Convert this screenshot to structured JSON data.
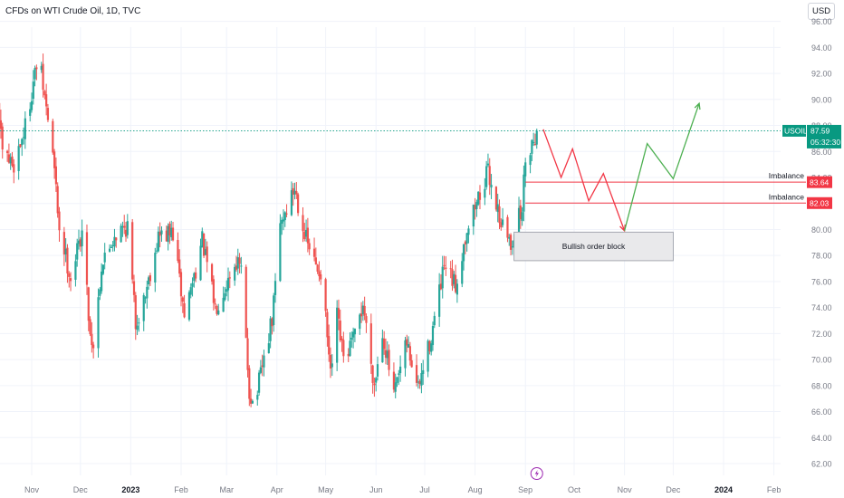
{
  "header": {
    "title": "CFDs on WTI Crude Oil, 1D, TVC",
    "currency_button": "USD"
  },
  "price_tag": {
    "symbol": "USOIL",
    "last_price": "87.59",
    "countdown": "05:32:30"
  },
  "colors": {
    "up": "#26a69a",
    "down": "#ef5350",
    "grid": "#f0f3fa",
    "axis_text": "#787b86",
    "projection_down": "#f23645",
    "projection_up": "#4caf50",
    "order_block_fill": "#e9e9eb",
    "order_block_stroke": "#9598a1",
    "label_red": "#f23645",
    "price_tag": "#089981"
  },
  "chart_data": {
    "type": "candlestick",
    "title": "CFDs on WTI Crude Oil, 1D, TVC",
    "ylim": [
      60.8,
      96.5
    ],
    "y_ticks": [
      62,
      64,
      66,
      68,
      70,
      72,
      74,
      76,
      78,
      80,
      82,
      84,
      86,
      88,
      90,
      92,
      94,
      96
    ],
    "x_ticks": [
      {
        "date": "2022-11-01",
        "label": "Nov",
        "bold": false
      },
      {
        "date": "2022-12-01",
        "label": "Dec",
        "bold": false
      },
      {
        "date": "2023-01-01",
        "label": "2023",
        "bold": true
      },
      {
        "date": "2023-02-01",
        "label": "Feb",
        "bold": false
      },
      {
        "date": "2023-03-01",
        "label": "Mar",
        "bold": false
      },
      {
        "date": "2023-04-01",
        "label": "Apr",
        "bold": false
      },
      {
        "date": "2023-05-01",
        "label": "May",
        "bold": false
      },
      {
        "date": "2023-06-01",
        "label": "Jun",
        "bold": false
      },
      {
        "date": "2023-07-01",
        "label": "Jul",
        "bold": false
      },
      {
        "date": "2023-08-01",
        "label": "Aug",
        "bold": false
      },
      {
        "date": "2023-09-01",
        "label": "Sep",
        "bold": false
      },
      {
        "date": "2023-10-01",
        "label": "Oct",
        "bold": false
      },
      {
        "date": "2023-11-01",
        "label": "Nov",
        "bold": false
      },
      {
        "date": "2023-12-01",
        "label": "Dec",
        "bold": false
      },
      {
        "date": "2024-01-01",
        "label": "2024",
        "bold": true
      },
      {
        "date": "2024-02-01",
        "label": "Feb",
        "bold": false
      }
    ],
    "price_path": [
      [
        "2022-10-05",
        88.5
      ],
      [
        "2022-10-10",
        91.2
      ],
      [
        "2022-10-14",
        85.6
      ],
      [
        "2022-10-21",
        85.0
      ],
      [
        "2022-10-28",
        87.9
      ],
      [
        "2022-11-04",
        92.6
      ],
      [
        "2022-11-07",
        91.8
      ],
      [
        "2022-11-14",
        85.9
      ],
      [
        "2022-11-18",
        80.1
      ],
      [
        "2022-11-25",
        76.3
      ],
      [
        "2022-12-02",
        79.9
      ],
      [
        "2022-12-07",
        72.0
      ],
      [
        "2022-12-09",
        71.1
      ],
      [
        "2022-12-14",
        77.2
      ],
      [
        "2022-12-22",
        79.6
      ],
      [
        "2022-12-30",
        80.3
      ],
      [
        "2023-01-04",
        72.8
      ],
      [
        "2023-01-09",
        74.6
      ],
      [
        "2023-01-18",
        79.5
      ],
      [
        "2023-01-27",
        79.7
      ],
      [
        "2023-02-03",
        73.4
      ],
      [
        "2023-02-14",
        79.1
      ],
      [
        "2023-02-22",
        74.0
      ],
      [
        "2023-03-07",
        77.6
      ],
      [
        "2023-03-10",
        76.7
      ],
      [
        "2023-03-15",
        67.6
      ],
      [
        "2023-03-17",
        66.7
      ],
      [
        "2023-03-20",
        67.6
      ],
      [
        "2023-03-29",
        73.0
      ],
      [
        "2023-03-31",
        75.7
      ],
      [
        "2023-04-03",
        80.4
      ],
      [
        "2023-04-12",
        83.2
      ],
      [
        "2023-04-19",
        79.2
      ],
      [
        "2023-04-25",
        77.1
      ],
      [
        "2023-04-28",
        76.8
      ],
      [
        "2023-05-02",
        71.7
      ],
      [
        "2023-05-04",
        68.6
      ],
      [
        "2023-05-08",
        73.2
      ],
      [
        "2023-05-12",
        70.0
      ],
      [
        "2023-05-19",
        71.7
      ],
      [
        "2023-05-24",
        74.3
      ],
      [
        "2023-05-31",
        68.1
      ],
      [
        "2023-06-05",
        72.2
      ],
      [
        "2023-06-12",
        67.1
      ],
      [
        "2023-06-20",
        71.2
      ],
      [
        "2023-06-27",
        67.7
      ],
      [
        "2023-07-05",
        71.8
      ],
      [
        "2023-07-13",
        77.0
      ],
      [
        "2023-07-20",
        75.6
      ],
      [
        "2023-07-27",
        80.1
      ],
      [
        "2023-08-04",
        82.8
      ],
      [
        "2023-08-09",
        84.4
      ],
      [
        "2023-08-17",
        80.6
      ],
      [
        "2023-08-23",
        78.8
      ],
      [
        "2023-08-25",
        79.8
      ],
      [
        "2023-08-30",
        81.6
      ],
      [
        "2023-09-01",
        85.6
      ],
      [
        "2023-09-05",
        86.7
      ],
      [
        "2023-09-08",
        87.6
      ]
    ],
    "last_price": 87.59,
    "price_line": 87.59,
    "annotations": [
      {
        "kind": "line",
        "label": "Imbalance",
        "price": 83.64,
        "price_label": "83.64",
        "start": "2023-09-01"
      },
      {
        "kind": "line",
        "label": "Imbalance",
        "price": 82.03,
        "price_label": "82.03",
        "start": "2023-09-01"
      },
      {
        "kind": "box",
        "label": "Bullish order block",
        "start": "2023-08-25",
        "end": "2023-12-01",
        "top": 79.8,
        "bottom": 77.6
      }
    ],
    "projection_down": [
      [
        "2023-09-12",
        87.7
      ],
      [
        "2023-09-23",
        84.0
      ],
      [
        "2023-09-30",
        86.2
      ],
      [
        "2023-10-10",
        82.2
      ],
      [
        "2023-10-19",
        84.3
      ],
      [
        "2023-11-01",
        79.9
      ]
    ],
    "projection_up": [
      [
        "2023-11-01",
        79.9
      ],
      [
        "2023-11-15",
        86.6
      ],
      [
        "2023-12-01",
        83.9
      ],
      [
        "2023-12-17",
        89.7
      ]
    ]
  }
}
